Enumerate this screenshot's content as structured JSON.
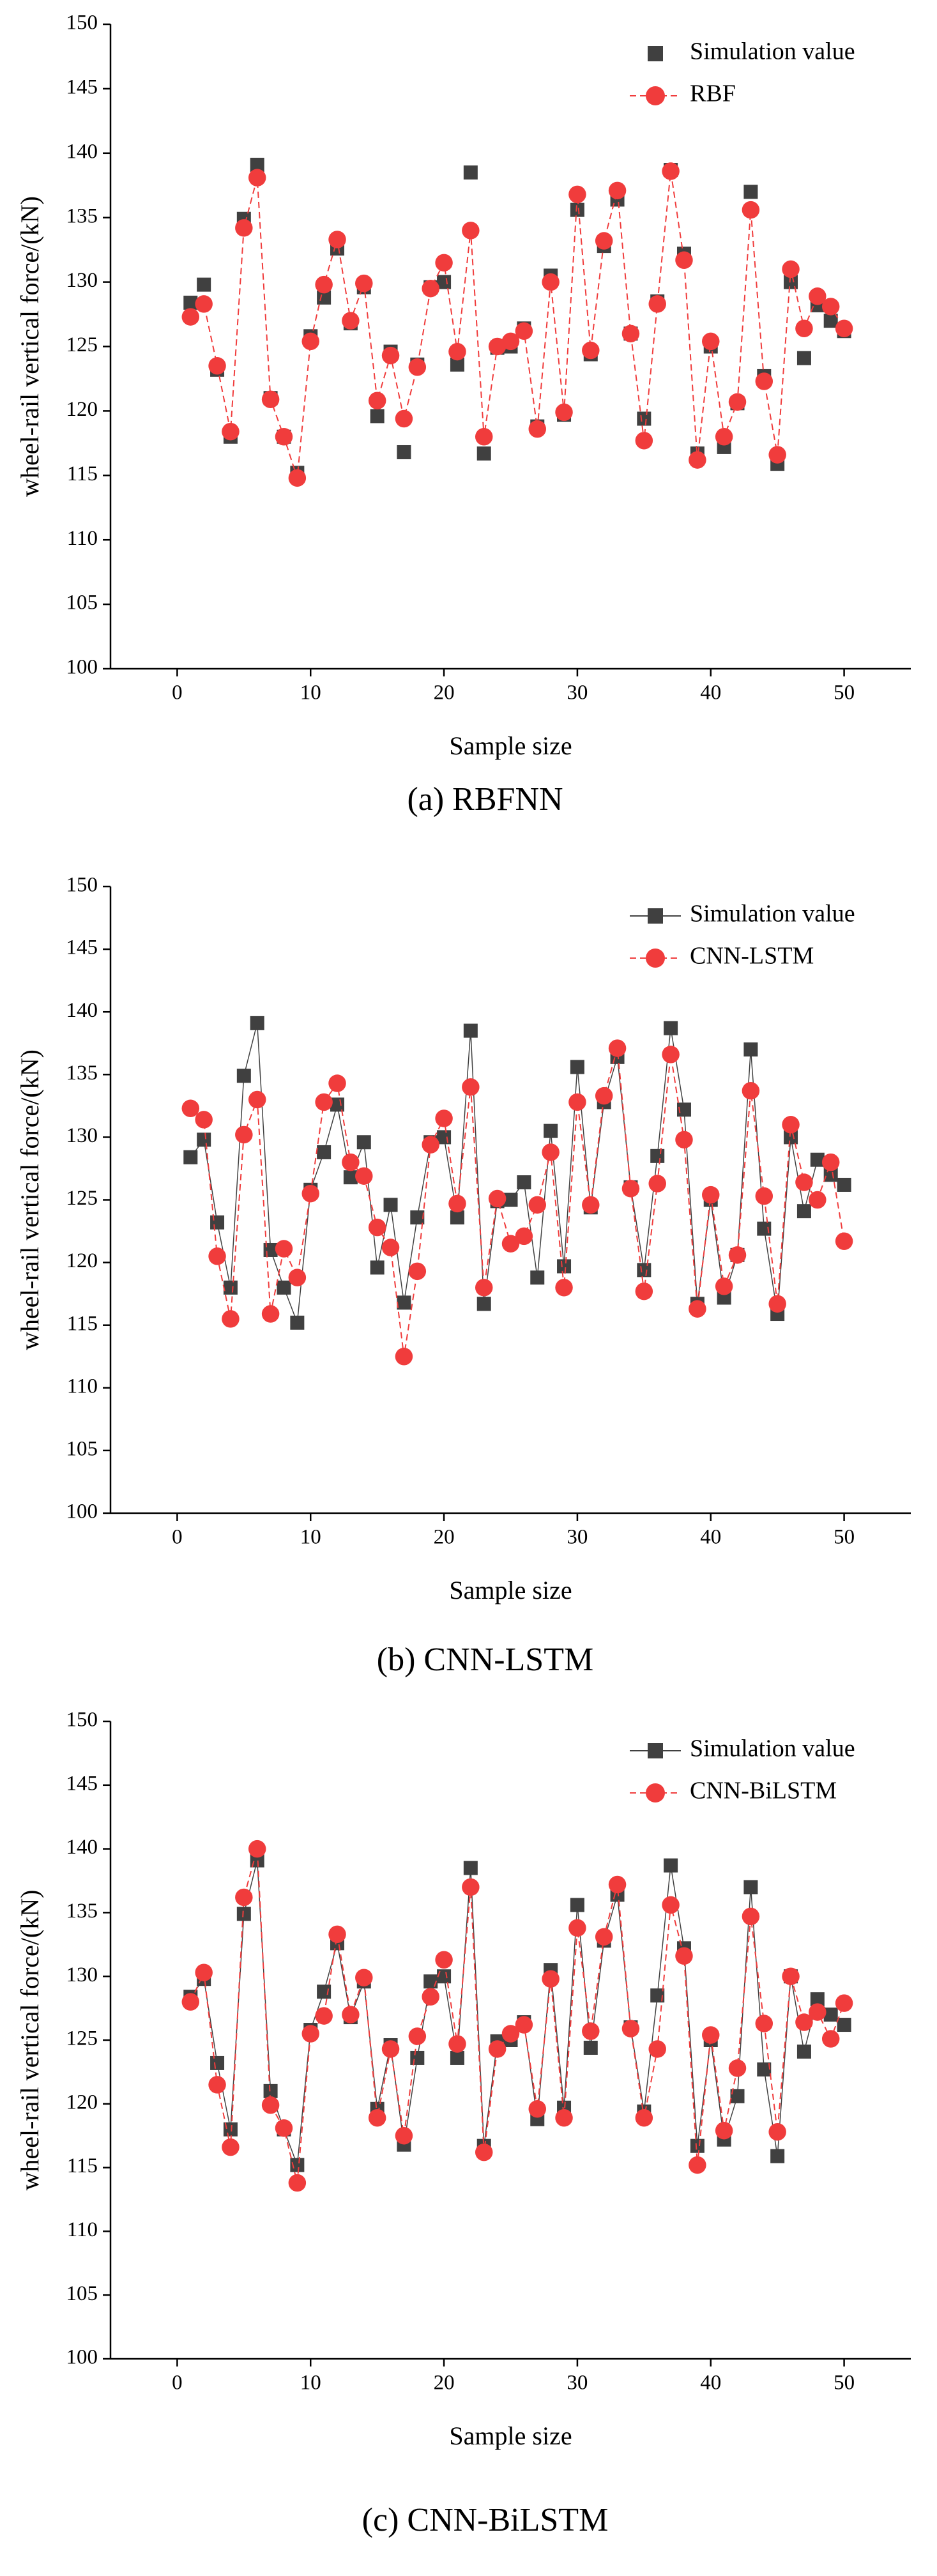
{
  "chart_data": [
    {
      "type": "line",
      "caption": "(a) RBFNN",
      "xlabel": "Sample size",
      "ylabel": "wheel-rail vertical force/(kN)",
      "x": [
        1,
        2,
        3,
        4,
        5,
        6,
        7,
        8,
        9,
        10,
        11,
        12,
        13,
        14,
        15,
        16,
        17,
        18,
        19,
        20,
        21,
        22,
        23,
        24,
        25,
        26,
        27,
        28,
        29,
        30,
        31,
        32,
        33,
        34,
        35,
        36,
        37,
        38,
        39,
        40,
        41,
        42,
        43,
        44,
        45,
        46,
        47,
        48,
        49,
        50
      ],
      "xlim": [
        -5,
        55
      ],
      "xticks": [
        0,
        10,
        20,
        30,
        40,
        50
      ],
      "ylim": [
        100,
        150
      ],
      "yticks": [
        100,
        105,
        110,
        115,
        120,
        125,
        130,
        135,
        140,
        145,
        150
      ],
      "series": [
        {
          "name": "Simulation value",
          "color": "#404040",
          "marker": "square",
          "line": false,
          "values": [
            128.4,
            129.8,
            123.2,
            118,
            134.9,
            139.1,
            121,
            118,
            115.2,
            125.8,
            128.8,
            132.6,
            126.8,
            129.6,
            119.6,
            124.6,
            116.8,
            123.6,
            129.6,
            130,
            123.6,
            138.5,
            116.7,
            124.9,
            125,
            126.4,
            118.8,
            130.5,
            119.7,
            135.6,
            124.4,
            132.8,
            136.4,
            126,
            119.4,
            128.5,
            138.7,
            132.2,
            116.7,
            125,
            117.2,
            120.6,
            137,
            122.7,
            115.9,
            130,
            124.1,
            128.2,
            127,
            126.2
          ]
        },
        {
          "name": "RBF",
          "color": "#f03c3c",
          "marker": "circle",
          "line": true,
          "values": [
            127.3,
            128.3,
            123.5,
            118.4,
            134.2,
            138.1,
            120.9,
            118,
            114.8,
            125.4,
            129.8,
            133.3,
            127,
            129.9,
            120.8,
            124.3,
            119.4,
            123.4,
            129.5,
            131.5,
            124.6,
            134,
            118,
            125,
            125.4,
            126.2,
            118.6,
            130,
            119.9,
            136.8,
            124.7,
            133.2,
            137.1,
            126,
            117.7,
            128.3,
            138.6,
            131.7,
            116.2,
            125.4,
            118,
            120.7,
            135.6,
            122.3,
            116.6,
            131,
            126.4,
            128.9,
            128.1,
            126.4
          ]
        }
      ]
    },
    {
      "type": "line",
      "caption": "(b) CNN-LSTM",
      "xlabel": "Sample size",
      "ylabel": "wheel-rail vertical force/(kN)",
      "x": [
        1,
        2,
        3,
        4,
        5,
        6,
        7,
        8,
        9,
        10,
        11,
        12,
        13,
        14,
        15,
        16,
        17,
        18,
        19,
        20,
        21,
        22,
        23,
        24,
        25,
        26,
        27,
        28,
        29,
        30,
        31,
        32,
        33,
        34,
        35,
        36,
        37,
        38,
        39,
        40,
        41,
        42,
        43,
        44,
        45,
        46,
        47,
        48,
        49,
        50
      ],
      "xlim": [
        -5,
        55
      ],
      "xticks": [
        0,
        10,
        20,
        30,
        40,
        50
      ],
      "ylim": [
        100,
        150
      ],
      "yticks": [
        100,
        105,
        110,
        115,
        120,
        125,
        130,
        135,
        140,
        145,
        150
      ],
      "series": [
        {
          "name": "Simulation value",
          "color": "#404040",
          "marker": "square",
          "line": true,
          "values": [
            128.4,
            129.8,
            123.2,
            118,
            134.9,
            139.1,
            121,
            118,
            115.2,
            125.8,
            128.8,
            132.6,
            126.8,
            129.6,
            119.6,
            124.6,
            116.8,
            123.6,
            129.6,
            130,
            123.6,
            138.5,
            116.7,
            124.9,
            125,
            126.4,
            118.8,
            130.5,
            119.7,
            135.6,
            124.4,
            132.8,
            136.4,
            126,
            119.4,
            128.5,
            138.7,
            132.2,
            116.7,
            125,
            117.2,
            120.6,
            137,
            122.7,
            115.9,
            130,
            124.1,
            128.2,
            127,
            126.2
          ]
        },
        {
          "name": "CNN-LSTM",
          "color": "#f03c3c",
          "marker": "circle",
          "line": true,
          "values": [
            132.3,
            131.4,
            120.5,
            115.5,
            130.2,
            133,
            115.9,
            121.1,
            118.8,
            125.5,
            132.8,
            134.3,
            128,
            126.9,
            122.8,
            121.2,
            112.5,
            119.3,
            129.4,
            131.5,
            124.7,
            134,
            118,
            125.1,
            121.5,
            122.1,
            124.6,
            128.8,
            118,
            132.8,
            124.6,
            133.3,
            137.1,
            125.9,
            117.7,
            126.3,
            136.6,
            129.8,
            116.3,
            125.4,
            118.1,
            120.6,
            133.7,
            125.3,
            116.7,
            131,
            126.4,
            125,
            128,
            121.7
          ]
        }
      ]
    },
    {
      "type": "line",
      "caption": "(c) CNN-BiLSTM",
      "xlabel": "Sample size",
      "ylabel": "wheel-rail vertical force/(kN)",
      "x": [
        1,
        2,
        3,
        4,
        5,
        6,
        7,
        8,
        9,
        10,
        11,
        12,
        13,
        14,
        15,
        16,
        17,
        18,
        19,
        20,
        21,
        22,
        23,
        24,
        25,
        26,
        27,
        28,
        29,
        30,
        31,
        32,
        33,
        34,
        35,
        36,
        37,
        38,
        39,
        40,
        41,
        42,
        43,
        44,
        45,
        46,
        47,
        48,
        49,
        50
      ],
      "xlim": [
        -5,
        55
      ],
      "xticks": [
        0,
        10,
        20,
        30,
        40,
        50
      ],
      "ylim": [
        100,
        150
      ],
      "yticks": [
        100,
        105,
        110,
        115,
        120,
        125,
        130,
        135,
        140,
        145,
        150
      ],
      "series": [
        {
          "name": "Simulation value",
          "color": "#404040",
          "marker": "square",
          "line": true,
          "values": [
            128.4,
            129.8,
            123.2,
            118,
            134.9,
            139.1,
            121,
            118,
            115.2,
            125.8,
            128.8,
            132.6,
            126.8,
            129.6,
            119.6,
            124.6,
            116.8,
            123.6,
            129.6,
            130,
            123.6,
            138.5,
            116.7,
            124.9,
            125,
            126.4,
            118.8,
            130.5,
            119.7,
            135.6,
            124.4,
            132.8,
            136.4,
            126,
            119.4,
            128.5,
            138.7,
            132.2,
            116.7,
            125,
            117.2,
            120.6,
            137,
            122.7,
            115.9,
            130,
            124.1,
            128.2,
            127,
            126.2
          ]
        },
        {
          "name": "CNN-BiLSTM",
          "color": "#f03c3c",
          "marker": "circle",
          "line": true,
          "values": [
            128,
            130.3,
            121.5,
            116.6,
            136.2,
            140,
            119.9,
            118.1,
            113.8,
            125.5,
            126.9,
            133.3,
            127,
            129.9,
            118.9,
            124.3,
            117.5,
            125.3,
            128.4,
            131.3,
            124.7,
            137,
            116.2,
            124.3,
            125.5,
            126.2,
            119.6,
            129.8,
            118.9,
            133.8,
            125.7,
            133.1,
            137.2,
            125.9,
            118.9,
            124.3,
            135.6,
            131.6,
            115.2,
            125.4,
            117.9,
            122.8,
            134.7,
            126.3,
            117.8,
            130,
            126.4,
            127.2,
            125.1,
            127.9
          ]
        }
      ]
    }
  ]
}
